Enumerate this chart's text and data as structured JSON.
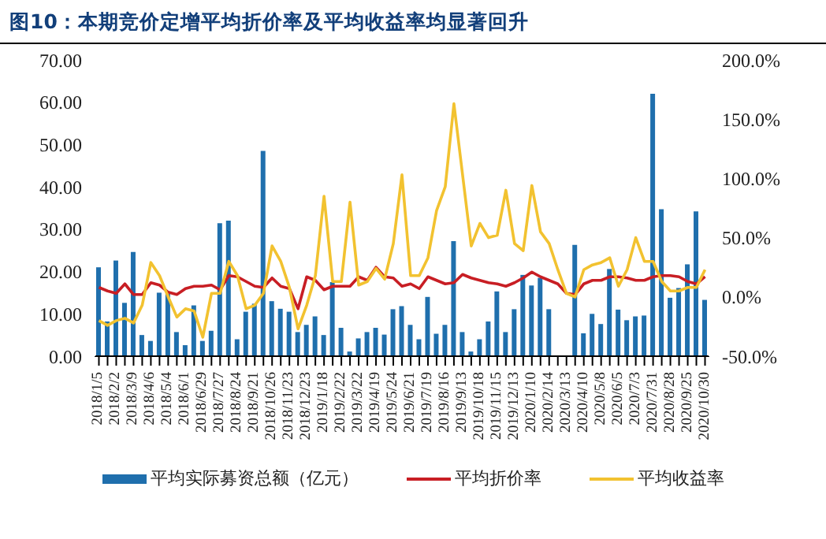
{
  "chart_data": {
    "type": "bar",
    "title": "图10：本期竞价定增平均折价率及平均收益率均显著回升",
    "categories": [
      "2018/1/5",
      null,
      "2018/2/2",
      null,
      "2018/3/9",
      null,
      "2018/4/6",
      null,
      "2018/5/4",
      null,
      "2018/6/1",
      null,
      "2018/6/29",
      null,
      "2018/7/27",
      null,
      "2018/8/24",
      null,
      "2018/9/21",
      null,
      "2018/10/26",
      null,
      "2018/11/23",
      null,
      "2018/12/23",
      null,
      "2019/1/18",
      null,
      "2019/2/22",
      null,
      "2019/3/22",
      null,
      "2019/4/19",
      null,
      "2019/5/24",
      null,
      "2019/6/21",
      null,
      "2019/7/19",
      null,
      "2019/8/16",
      null,
      "2019/9/13",
      null,
      "2019/10/18",
      null,
      "2019/11/15",
      null,
      "2019/12/13",
      null,
      "2020/1/10",
      null,
      "2020/2/14",
      null,
      "2020/3/13",
      null,
      "2020/4/10",
      null,
      "2020/5/8",
      null,
      "2020/6/5",
      null,
      "2020/7/3",
      null,
      "2020/7/31",
      null,
      "2020/8/28",
      null,
      "2020/9/25",
      null,
      "2020/10/30"
    ],
    "series": [
      {
        "name": "平均实际募资总额（亿元）",
        "color": "#1f6fad",
        "values": [
          21,
          8.2,
          22.6,
          12.6,
          24.6,
          5,
          3.6,
          15,
          14.7,
          5.7,
          2.6,
          12,
          3.6,
          6,
          31.4,
          32,
          4,
          10.5,
          12.4,
          48.5,
          13,
          11.2,
          10.5,
          5.7,
          7.4,
          9.4,
          5,
          17.5,
          6.7,
          1.1,
          4.2,
          5.7,
          6.7,
          5.1,
          11.1,
          11.8,
          7.4,
          4,
          14,
          5.3,
          7.4,
          27.2,
          5.7,
          1.1,
          4,
          8.2,
          15.3,
          5.7,
          11.1,
          19.2,
          16.7,
          18.5,
          11.1,
          null,
          null,
          26.3,
          5.4,
          10,
          7.6,
          20.6,
          11,
          8.5,
          9.4,
          9.6,
          62,
          34.7,
          13.8,
          16.1,
          21.7,
          34.2,
          13.3
        ]
      },
      {
        "name": "平均折价率",
        "type": "line",
        "axis": "y2",
        "color": "#c81e24",
        "values": [
          8,
          5,
          3,
          11,
          2,
          2,
          12,
          10,
          4,
          2,
          7,
          9,
          9,
          10,
          6,
          18,
          17,
          13,
          9,
          8,
          16,
          9,
          7,
          -10,
          17,
          14,
          6,
          9,
          9,
          9,
          17,
          14,
          25,
          17,
          16,
          9,
          11,
          7,
          17,
          14,
          11,
          12,
          19,
          16,
          14,
          12,
          11,
          9,
          12,
          16,
          21,
          17,
          14,
          11,
          3,
          2,
          11,
          14,
          14,
          17,
          17,
          16,
          14,
          14,
          17,
          18,
          18,
          17,
          13,
          11,
          17
        ]
      },
      {
        "name": "平均收益率",
        "type": "line",
        "axis": "y2",
        "color": "#f2c230",
        "values": [
          -20,
          -24,
          -20,
          -18,
          -22,
          -7,
          29,
          18,
          0,
          -17,
          -10,
          -12,
          -34,
          3,
          3,
          30,
          18,
          -10,
          -7,
          3,
          43,
          30,
          8,
          -27,
          -7,
          18,
          85,
          13,
          13,
          80,
          10,
          13,
          24,
          15,
          45,
          103,
          18,
          18,
          33,
          73,
          93,
          163,
          103,
          43,
          62,
          50,
          52,
          90,
          45,
          39,
          94,
          55,
          45,
          23,
          3,
          0,
          23,
          27,
          29,
          33,
          9,
          23,
          50,
          30,
          30,
          13,
          5,
          5,
          8,
          8,
          23
        ]
      }
    ],
    "ylim": [
      0,
      70
    ],
    "yticks": [
      {
        "value": 0,
        "label": "0.00"
      },
      {
        "value": 10,
        "label": "10.00"
      },
      {
        "value": 20,
        "label": "20.00"
      },
      {
        "value": 30,
        "label": "30.00"
      },
      {
        "value": 40,
        "label": "40.00"
      },
      {
        "value": 50,
        "label": "50.00"
      },
      {
        "value": 60,
        "label": "60.00"
      },
      {
        "value": 70,
        "label": "70.00"
      }
    ],
    "y2lim": [
      -50,
      200
    ],
    "y2ticks": [
      {
        "value": -50,
        "label": "-50.0%"
      },
      {
        "value": 0,
        "label": "0.0%"
      },
      {
        "value": 50,
        "label": "50.0%"
      },
      {
        "value": 100,
        "label": "100.0%"
      },
      {
        "value": 150,
        "label": "150.0%"
      },
      {
        "value": 200,
        "label": "200.0%"
      }
    ],
    "legend": "bottom",
    "grid": false,
    "marker": "none",
    "line_style": "solid"
  }
}
